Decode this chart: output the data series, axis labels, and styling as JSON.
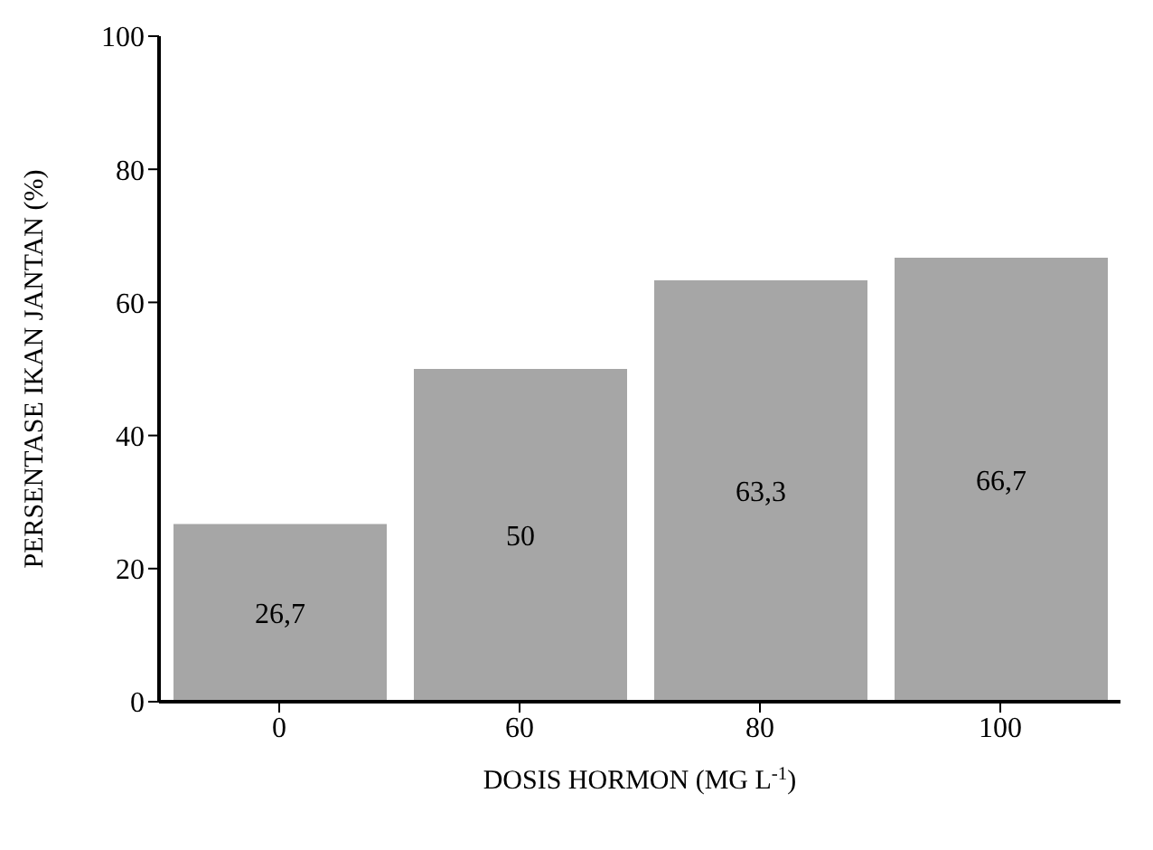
{
  "chart_data": {
    "type": "bar",
    "xlabel": "DOSIS HORMON (MG L$^{-1}$)",
    "ylabel": "PERSENTASE IKAN JANTAN (%)",
    "categories": [
      "0",
      "60",
      "80",
      "100"
    ],
    "values": [
      26.7,
      50,
      63.3,
      66.7
    ],
    "value_labels": [
      "26,7",
      "50",
      "63,3",
      "66,7"
    ],
    "color": "#a6a6a6",
    "ylim": [
      0,
      100
    ],
    "yticks": [
      0,
      20,
      40,
      60,
      80,
      100
    ],
    "grid": false,
    "legend": false
  }
}
